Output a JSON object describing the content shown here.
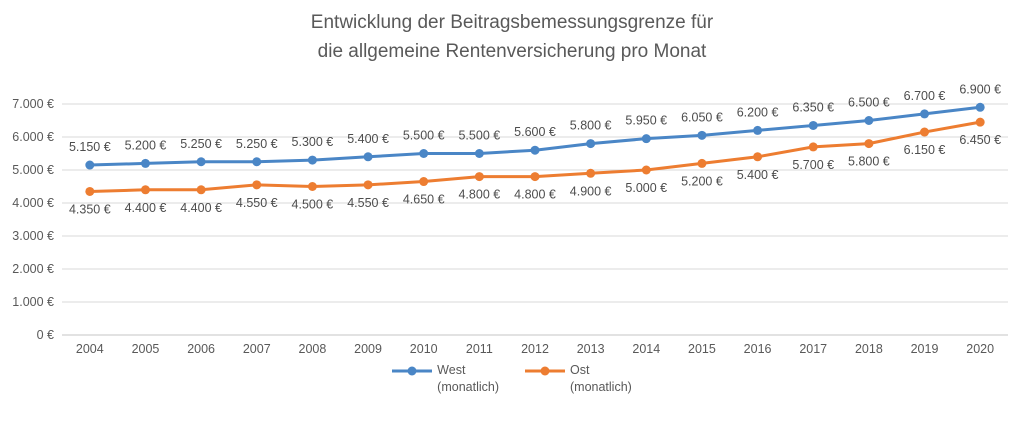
{
  "title": {
    "line1": "Entwicklung der Beitragsbemessungsgrenze für",
    "line2": "die allgemeine Rentenversicherung pro Monat"
  },
  "colors": {
    "west": "#4a86c6",
    "ost": "#ed7d31",
    "grid": "#d9d9d9",
    "axis": "#c6c6c6",
    "text": "#595959",
    "title": "#595959",
    "data_label": "#4d4d4d"
  },
  "chart_data": {
    "type": "line",
    "title": "Entwicklung der Beitragsbemessungsgrenze für die allgemeine Rentenversicherung pro Monat",
    "categories": [
      2004,
      2005,
      2006,
      2007,
      2008,
      2009,
      2010,
      2011,
      2012,
      2013,
      2014,
      2015,
      2016,
      2017,
      2018,
      2019,
      2020
    ],
    "series": [
      {
        "name": "West (monatlich)",
        "legend_line1": "West",
        "legend_line2": "(monatlich)",
        "color_key": "west",
        "label_position": "above",
        "values": [
          5150,
          5200,
          5250,
          5250,
          5300,
          5400,
          5500,
          5500,
          5600,
          5800,
          5950,
          6050,
          6200,
          6350,
          6500,
          6700,
          6900
        ]
      },
      {
        "name": "Ost (monatlich)",
        "legend_line1": "Ost",
        "legend_line2": "(monatlich)",
        "color_key": "ost",
        "label_position": "below",
        "values": [
          4350,
          4400,
          4400,
          4550,
          4500,
          4550,
          4650,
          4800,
          4800,
          4900,
          5000,
          5200,
          5400,
          5700,
          5800,
          6150,
          6450
        ]
      }
    ],
    "xlabel": "",
    "ylabel": "",
    "ylim": [
      0,
      7000
    ],
    "ytick_step": 1000,
    "ytick_suffix": " €",
    "data_label_suffix": " €",
    "thousands_separator": ".",
    "grid": true,
    "legend_position": "bottom"
  }
}
